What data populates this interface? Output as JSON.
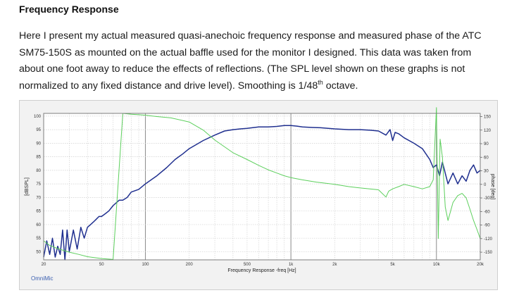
{
  "heading": "Frequency Response",
  "paragraph": {
    "main": "Here I present my actual measured quasi-anechoic frequency response and measured phase of the ATC SM75-150S as mounted on the actual baffle used for the monitor I designed.  This data was taken from about one foot away to reduce the effects of reflections. (The SPL level shown on these graphs is not normalized to any fixed distance and drive level). Smoothing is 1/48",
    "superscript": "th",
    "tail": " octave."
  },
  "figure": {
    "brand": "OmniMic"
  },
  "chart_data": {
    "type": "line",
    "xscale": "log",
    "xlim": [
      20,
      20000
    ],
    "xticks": [
      20,
      50,
      100,
      200,
      500,
      1000,
      2000,
      5000,
      10000,
      20000
    ],
    "xtick_labels": [
      "20",
      "50",
      "100",
      "200",
      "500",
      "1k",
      "2k",
      "5k",
      "10k",
      "20k"
    ],
    "xlabel": "Frequency Response -freq [Hz]",
    "ylabel_left": "[dBSPL]",
    "ylim_left": [
      47,
      101
    ],
    "yticks_left": [
      50,
      55,
      60,
      65,
      70,
      75,
      80,
      85,
      90,
      95,
      100
    ],
    "ylabel_right": "phase [deg]",
    "ylim_right": [
      -167,
      157
    ],
    "yticks_right": [
      -150,
      -120,
      -90,
      -60,
      -30,
      0,
      30,
      60,
      90,
      120,
      150
    ],
    "grid": true,
    "colors": {
      "spl": "#1f2f8f",
      "phase": "#5ccf5c"
    },
    "series": [
      {
        "axis": "left",
        "x": [
          20,
          21,
          22,
          23,
          24,
          25,
          26,
          27,
          28,
          29,
          30,
          32,
          34,
          36,
          38,
          40,
          42,
          44,
          46,
          48,
          50,
          53,
          56,
          60,
          63,
          66,
          70,
          75,
          80,
          90,
          100,
          120,
          140,
          160,
          180,
          200,
          250,
          300,
          350,
          400,
          450,
          500,
          600,
          700,
          800,
          900,
          1000,
          1100,
          1200,
          1400,
          1600,
          1800,
          2000,
          2500,
          3000,
          3500,
          4000,
          4500,
          4800,
          5000,
          5200,
          5500,
          6000,
          7000,
          8000,
          9000,
          9500,
          10000,
          10500,
          11000,
          12000,
          13000,
          14000,
          15000,
          16000,
          17000,
          18000,
          19000,
          20000
        ],
        "y": [
          48,
          54,
          49,
          55,
          48,
          52,
          49,
          58,
          47,
          58,
          50,
          58,
          51,
          59,
          55,
          59,
          60,
          61,
          62,
          63,
          63,
          64,
          65,
          67,
          68,
          69,
          69,
          70,
          72,
          73,
          75,
          78,
          81,
          84,
          86,
          88,
          91,
          93,
          94.5,
          95,
          95.3,
          95.5,
          96,
          96,
          96.2,
          96.5,
          96.5,
          96.3,
          96,
          95.8,
          95.7,
          95.5,
          95.3,
          95,
          95,
          94.8,
          94.5,
          93,
          95,
          91,
          94,
          93.5,
          92,
          90,
          88,
          84,
          81,
          82,
          78,
          83,
          75,
          79,
          75,
          78,
          76,
          80,
          82,
          79,
          80
        ]
      },
      {
        "axis": "right",
        "x": [
          20,
          22,
          25,
          30,
          35,
          40,
          50,
          60,
          70,
          75,
          80,
          90,
          100,
          120,
          150,
          200,
          250,
          300,
          400,
          500,
          600,
          700,
          800,
          900,
          1000,
          1200,
          1500,
          2000,
          2500,
          3000,
          4000,
          4500,
          4700,
          5000,
          5500,
          6000,
          7000,
          8000,
          9000,
          9500,
          10000,
          10300,
          10600,
          11000,
          11500,
          12000,
          13000,
          14000,
          15000,
          16000,
          17000,
          18000,
          19000,
          20000
        ],
        "y": [
          -125,
          -135,
          -142,
          -150,
          -155,
          -160,
          -164,
          -166,
          157,
          156,
          155,
          154,
          153,
          150,
          147,
          138,
          120,
          98,
          70,
          55,
          42,
          32,
          25,
          19,
          15,
          10,
          5,
          0,
          -5,
          -8,
          -12,
          -28,
          -15,
          -10,
          -5,
          0,
          -5,
          -10,
          -5,
          10,
          170,
          -120,
          100,
          60,
          -50,
          -80,
          -40,
          -25,
          -20,
          -30,
          -55,
          -80,
          -100,
          -120
        ]
      }
    ]
  }
}
